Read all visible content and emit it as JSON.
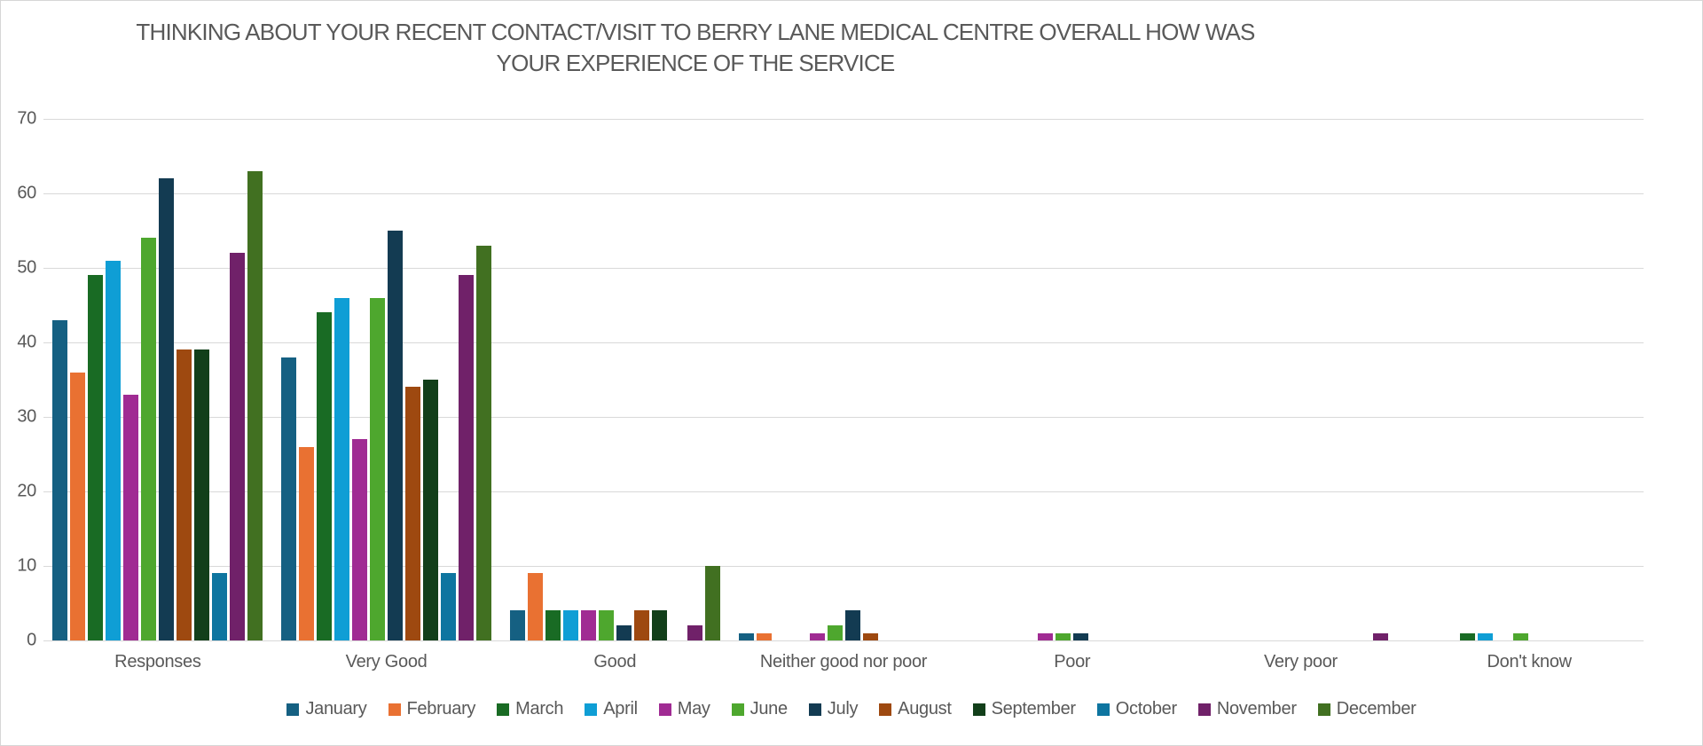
{
  "chart_data": {
    "type": "bar",
    "title": "THINKING ABOUT YOUR RECENT CONTACT/VISIT TO BERRY LANE MEDICAL CENTRE OVERALL HOW WAS YOUR EXPERIENCE OF THE SERVICE",
    "title_lines": [
      "THINKING ABOUT YOUR RECENT CONTACT/VISIT TO BERRY LANE MEDICAL CENTRE OVERALL HOW WAS",
      "YOUR EXPERIENCE OF THE SERVICE"
    ],
    "categories": [
      "Responses",
      "Very Good",
      "Good",
      "Neither good nor poor",
      "Poor",
      "Very poor",
      "Don't know"
    ],
    "series": [
      {
        "name": "January",
        "color": "#156082",
        "values": [
          43,
          38,
          4,
          1,
          0,
          0,
          0
        ]
      },
      {
        "name": "February",
        "color": "#E97132",
        "values": [
          36,
          26,
          9,
          1,
          0,
          0,
          0
        ]
      },
      {
        "name": "March",
        "color": "#196B24",
        "values": [
          49,
          44,
          4,
          0,
          0,
          0,
          1
        ]
      },
      {
        "name": "April",
        "color": "#0F9ED5",
        "values": [
          51,
          46,
          4,
          0,
          0,
          0,
          1
        ]
      },
      {
        "name": "May",
        "color": "#A02B93",
        "values": [
          33,
          27,
          4,
          1,
          1,
          0,
          0
        ]
      },
      {
        "name": "June",
        "color": "#4EA72E",
        "values": [
          54,
          46,
          4,
          2,
          1,
          0,
          1
        ]
      },
      {
        "name": "July",
        "color": "#133B52",
        "values": [
          62,
          55,
          2,
          4,
          1,
          0,
          0
        ]
      },
      {
        "name": "August",
        "color": "#9E4910",
        "values": [
          39,
          34,
          4,
          1,
          0,
          0,
          0
        ]
      },
      {
        "name": "September",
        "color": "#123F1A",
        "values": [
          39,
          35,
          4,
          0,
          0,
          0,
          0
        ]
      },
      {
        "name": "October",
        "color": "#0E75A0",
        "values": [
          9,
          9,
          0,
          0,
          0,
          0,
          0
        ]
      },
      {
        "name": "November",
        "color": "#702169",
        "values": [
          52,
          49,
          2,
          0,
          0,
          1,
          0
        ]
      },
      {
        "name": "December",
        "color": "#417021",
        "values": [
          63,
          53,
          10,
          0,
          0,
          0,
          0
        ]
      }
    ],
    "ylim": [
      0,
      70
    ],
    "yticks": [
      0,
      10,
      20,
      30,
      40,
      50,
      60,
      70
    ],
    "xlabel": "",
    "ylabel": "",
    "grid": "horizontal",
    "legend_position": "bottom",
    "text_color": "#595959",
    "gridline_color": "#D9D9D9",
    "background_color": "#FFFFFF"
  }
}
